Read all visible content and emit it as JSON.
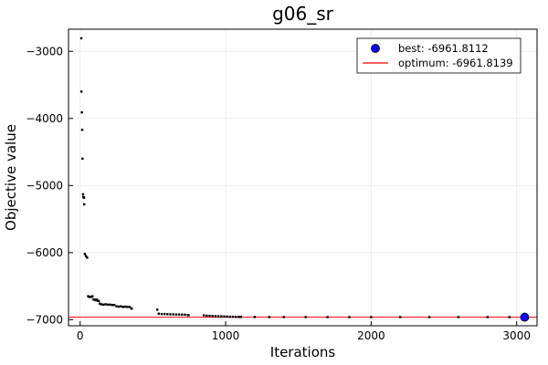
{
  "chart_data": {
    "type": "scatter",
    "title": "g06_sr",
    "xlabel": "Iterations",
    "ylabel": "Objective value",
    "xlim": [
      -80,
      3140
    ],
    "ylim": [
      -7090,
      -2670
    ],
    "xticks": [
      0,
      1000,
      2000,
      3000
    ],
    "yticks": [
      -7000,
      -6000,
      -5000,
      -4000,
      -3000
    ],
    "xtick_labels": [
      "0",
      "1000",
      "2000",
      "3000"
    ],
    "ytick_labels": [
      "−7000",
      "−6000",
      "−5000",
      "−4000",
      "−3000"
    ],
    "grid": true,
    "legend_position": "top-right",
    "colors": {
      "samples": "#000000",
      "best_fill": "#0000ff",
      "optimum_line": "#ff0000",
      "grid": "#ededed",
      "frame": "#000000"
    },
    "series": [
      {
        "name": "samples",
        "kind": "scatter",
        "points": [
          [
            8,
            -2805
          ],
          [
            9,
            -3600
          ],
          [
            12,
            -3910
          ],
          [
            14,
            -4170
          ],
          [
            16,
            -4600
          ],
          [
            20,
            -5130
          ],
          [
            22,
            -5170
          ],
          [
            25,
            -5180
          ],
          [
            27,
            -5180
          ],
          [
            28,
            -5280
          ],
          [
            32,
            -6020
          ],
          [
            40,
            -6050
          ],
          [
            48,
            -6075
          ],
          [
            55,
            -6650
          ],
          [
            62,
            -6660
          ],
          [
            70,
            -6660
          ],
          [
            78,
            -6660
          ],
          [
            85,
            -6650
          ],
          [
            92,
            -6700
          ],
          [
            100,
            -6700
          ],
          [
            108,
            -6710
          ],
          [
            115,
            -6700
          ],
          [
            122,
            -6720
          ],
          [
            128,
            -6720
          ],
          [
            135,
            -6760
          ],
          [
            145,
            -6770
          ],
          [
            160,
            -6775
          ],
          [
            175,
            -6770
          ],
          [
            190,
            -6775
          ],
          [
            205,
            -6775
          ],
          [
            220,
            -6780
          ],
          [
            235,
            -6780
          ],
          [
            250,
            -6800
          ],
          [
            265,
            -6805
          ],
          [
            280,
            -6800
          ],
          [
            295,
            -6810
          ],
          [
            310,
            -6805
          ],
          [
            325,
            -6810
          ],
          [
            340,
            -6810
          ],
          [
            352,
            -6830
          ],
          [
            355,
            -6835
          ],
          [
            530,
            -6850
          ],
          [
            540,
            -6910
          ],
          [
            560,
            -6915
          ],
          [
            580,
            -6915
          ],
          [
            600,
            -6918
          ],
          [
            620,
            -6920
          ],
          [
            640,
            -6920
          ],
          [
            660,
            -6922
          ],
          [
            680,
            -6922
          ],
          [
            700,
            -6924
          ],
          [
            720,
            -6925
          ],
          [
            740,
            -6930
          ],
          [
            745,
            -6932
          ],
          [
            850,
            -6935
          ],
          [
            870,
            -6940
          ],
          [
            890,
            -6942
          ],
          [
            910,
            -6945
          ],
          [
            930,
            -6947
          ],
          [
            950,
            -6948
          ],
          [
            970,
            -6950
          ],
          [
            990,
            -6952
          ],
          [
            1010,
            -6953
          ],
          [
            1030,
            -6955
          ],
          [
            1050,
            -6956
          ],
          [
            1070,
            -6957
          ],
          [
            1090,
            -6958
          ],
          [
            1105,
            -6958
          ],
          [
            1200,
            -6959
          ],
          [
            1300,
            -6960
          ],
          [
            1400,
            -6960
          ],
          [
            1550,
            -6960
          ],
          [
            1700,
            -6961
          ],
          [
            1850,
            -6961
          ],
          [
            2000,
            -6961
          ],
          [
            2200,
            -6961
          ],
          [
            2400,
            -6961
          ],
          [
            2600,
            -6961
          ],
          [
            2800,
            -6961
          ],
          [
            2950,
            -6961
          ]
        ]
      },
      {
        "name": "best: -6961.8112",
        "kind": "marker",
        "x": 3055,
        "y": -6961.8112
      },
      {
        "name": "optimum: -6961.8139",
        "kind": "hline",
        "y": -6961.8139
      }
    ]
  }
}
